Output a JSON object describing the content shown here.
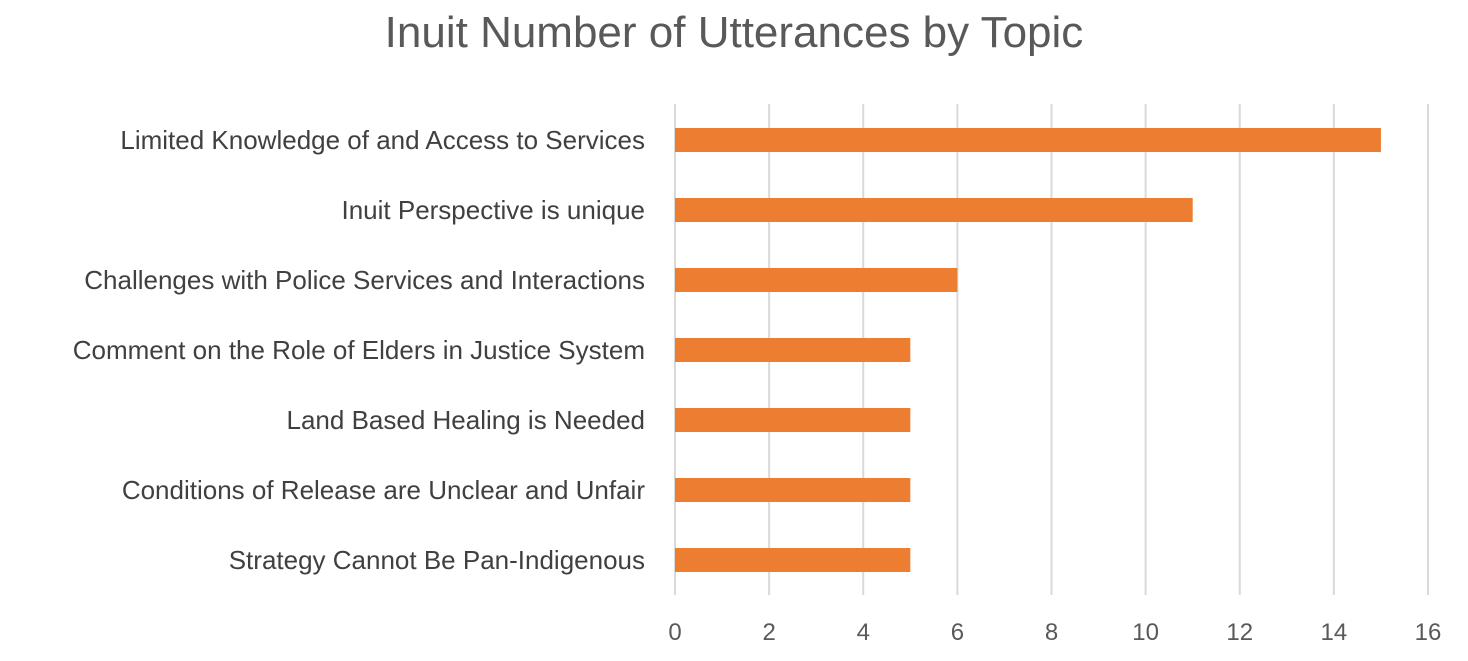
{
  "chart_data": {
    "type": "bar",
    "orientation": "horizontal",
    "title": "Inuit Number of Utterances by Topic",
    "xlabel": "",
    "ylabel": "",
    "categories": [
      "Limited Knowledge of and Access to Services",
      "Inuit Perspective is unique",
      "Challenges with Police Services and Interactions",
      "Comment on the Role of Elders in Justice System",
      "Land Based Healing is Needed",
      "Conditions of Release are Unclear and Unfair",
      "Strategy Cannot Be Pan-Indigenous"
    ],
    "values": [
      15,
      11,
      6,
      5,
      5,
      5,
      5
    ],
    "xlim": [
      0,
      16
    ],
    "xticks": [
      "0",
      "2",
      "4",
      "6",
      "8",
      "10",
      "12",
      "14",
      "16"
    ],
    "grid": "vertical",
    "legend": "none",
    "bar_color": "#ED7D31"
  }
}
